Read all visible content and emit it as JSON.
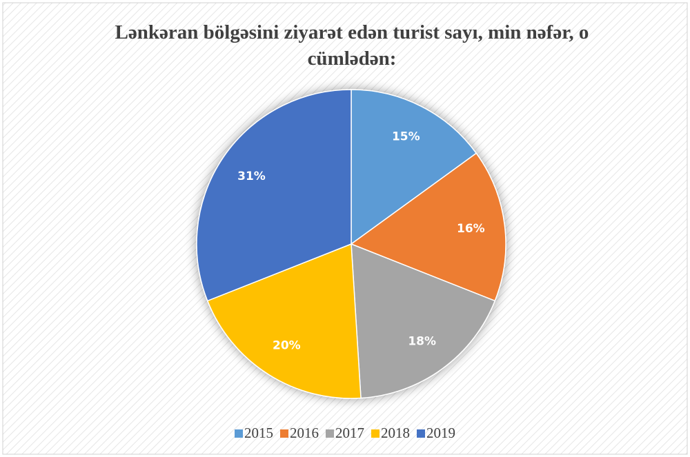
{
  "chart_data": {
    "type": "pie",
    "title": "Lənkəran bölgəsini ziyarət edən turist sayı, min nəfər, o cümlədən:",
    "categories": [
      "2015",
      "2016",
      "2017",
      "2018",
      "2019"
    ],
    "values": [
      15,
      16,
      18,
      20,
      31
    ],
    "value_labels": [
      "15%",
      "16%",
      "18%",
      "20%",
      "31%"
    ],
    "colors": [
      "#5b9bd5",
      "#ed7d31",
      "#a5a5a5",
      "#ffc000",
      "#4472c4"
    ],
    "legend": "bottom"
  }
}
